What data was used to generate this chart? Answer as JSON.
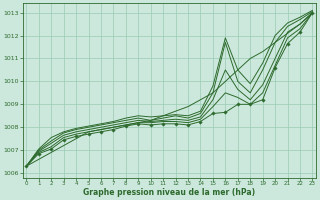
{
  "x": [
    0,
    1,
    2,
    3,
    4,
    5,
    6,
    7,
    8,
    9,
    10,
    11,
    12,
    13,
    14,
    15,
    16,
    17,
    18,
    19,
    20,
    21,
    22,
    23
  ],
  "line_top": [
    1006.3,
    1007.05,
    1007.55,
    1007.8,
    1007.95,
    1008.05,
    1008.15,
    1008.25,
    1008.4,
    1008.5,
    1008.45,
    1008.5,
    1008.55,
    1008.5,
    1008.7,
    1009.8,
    1011.9,
    1010.5,
    1009.9,
    1010.8,
    1012.0,
    1012.55,
    1012.8,
    1013.1
  ],
  "line_upper": [
    1006.3,
    1007.0,
    1007.4,
    1007.75,
    1007.9,
    1008.0,
    1008.1,
    1008.2,
    1008.3,
    1008.4,
    1008.3,
    1008.4,
    1008.5,
    1008.4,
    1008.6,
    1009.5,
    1011.7,
    1010.0,
    1009.5,
    1010.5,
    1011.7,
    1012.4,
    1012.7,
    1013.05
  ],
  "line_middle": [
    1006.3,
    1006.95,
    1007.3,
    1007.65,
    1007.8,
    1007.9,
    1008.0,
    1008.1,
    1008.2,
    1008.3,
    1008.25,
    1008.3,
    1008.35,
    1008.3,
    1008.45,
    1009.2,
    1010.5,
    1009.65,
    1009.2,
    1009.85,
    1011.0,
    1012.15,
    1012.5,
    1013.0
  ],
  "line_lower": [
    1006.3,
    1006.9,
    1007.15,
    1007.55,
    1007.7,
    1007.8,
    1007.9,
    1008.0,
    1008.1,
    1008.2,
    1008.2,
    1008.25,
    1008.25,
    1008.2,
    1008.35,
    1008.9,
    1009.5,
    1009.3,
    1009.0,
    1009.5,
    1010.7,
    1011.9,
    1012.3,
    1013.0
  ],
  "line_marker": [
    1006.3,
    1006.85,
    1007.05,
    1007.45,
    1007.6,
    1007.7,
    1007.8,
    1007.9,
    1008.05,
    1008.15,
    1008.1,
    1008.15,
    1008.15,
    1008.1,
    1008.25,
    1008.6,
    1008.65,
    1009.0,
    1009.0,
    1009.2,
    1010.6,
    1011.65,
    1012.15,
    1013.0
  ],
  "line_straight": [
    1006.3,
    1006.6,
    1006.9,
    1007.2,
    1007.5,
    1007.8,
    1007.9,
    1008.0,
    1008.1,
    1008.2,
    1008.3,
    1008.5,
    1008.7,
    1008.9,
    1009.2,
    1009.5,
    1010.0,
    1010.5,
    1011.0,
    1011.3,
    1011.7,
    1012.1,
    1012.5,
    1013.0
  ],
  "line_color": "#2d6a2d",
  "bg_color": "#cce8dc",
  "grid_color": "#99ccb3",
  "text_color": "#2d6a2d",
  "xlabel": "Graphe pression niveau de la mer (hPa)",
  "ylim": [
    1005.8,
    1013.4
  ],
  "xlim": [
    -0.3,
    23.3
  ],
  "yticks": [
    1006,
    1007,
    1008,
    1009,
    1010,
    1011,
    1012,
    1013
  ],
  "xticks": [
    0,
    1,
    2,
    3,
    4,
    5,
    6,
    7,
    8,
    9,
    10,
    11,
    12,
    13,
    14,
    15,
    16,
    17,
    18,
    19,
    20,
    21,
    22,
    23
  ]
}
